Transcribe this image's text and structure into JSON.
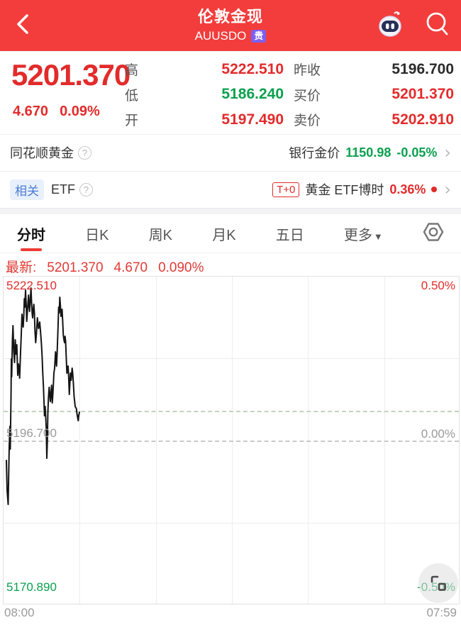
{
  "colors": {
    "header_bg": "#f23d3c",
    "accent_red": "#e22b2b",
    "up_red": "#e22b2b",
    "down_green": "#0ba04e",
    "tab_underline": "#ee3b33",
    "axis_gray": "#9a9a9a",
    "related_badge_bg": "#e8f0fc",
    "related_badge_text": "#4a7bd4",
    "vip_badge_bg": "#7e5ff0",
    "line_color": "#141414"
  },
  "header": {
    "title": "伦敦金现",
    "subtitle": "AUUSDO",
    "vip_badge": "贵",
    "icons": [
      "back-chevron",
      "robot-assistant",
      "search-magnifier"
    ]
  },
  "quote": {
    "price": "5201.370",
    "change": "4.670",
    "change_pct": "0.09%",
    "stats": [
      {
        "label": "高",
        "value": "5222.510",
        "color": "red"
      },
      {
        "label": "低",
        "value": "5186.240",
        "color": "green"
      },
      {
        "label": "开",
        "value": "5197.490",
        "color": "red"
      },
      {
        "label": "昨收",
        "value": "5196.700",
        "color": "dark"
      },
      {
        "label": "买价",
        "value": "5201.370",
        "color": "red"
      },
      {
        "label": "卖价",
        "value": "5202.910",
        "color": "red"
      }
    ]
  },
  "gold_row": {
    "title": "同花顺黄金",
    "help_icon": "?",
    "bank_label": "银行金价",
    "bank_price": "1150.98",
    "bank_change": "-0.05%",
    "chevron": "›"
  },
  "etf_row": {
    "tag": "相关",
    "title": "ETF",
    "help_icon": "?",
    "t0_badge": "T+0",
    "fund_name": "黄金 ETF博时",
    "fund_change": "0.36%",
    "chevron": "›"
  },
  "tabs": {
    "items": [
      "分时",
      "日K",
      "周K",
      "月K",
      "五日",
      "更多"
    ],
    "active": "分时",
    "more_caret": "▼",
    "settings_icon": "hex-gear"
  },
  "latest": {
    "label": "最新:",
    "price": "5201.370",
    "change": "4.670",
    "pct": "0.090%"
  },
  "chart_data": {
    "type": "line",
    "title": "分时 (intraday) price line",
    "x_axis": [
      "08:00",
      "07:59"
    ],
    "y_axis_left": [
      "5222.510",
      "5196.700",
      "5170.890"
    ],
    "y_axis_right": [
      "0.50%",
      "0.00%",
      "-0.50%"
    ],
    "prev_close": 5196.7,
    "latest_price": 5201.37,
    "high": 5222.51,
    "low": 5186.24,
    "ylim": [
      5170.89,
      5222.51
    ],
    "grid": "on",
    "plot_size": [
      644,
      463
    ],
    "zero_line_y": 231,
    "latest_line_y": 189,
    "points": [
      [
        4,
        259
      ],
      [
        5,
        301
      ],
      [
        6.5,
        321
      ],
      [
        7.5,
        266
      ],
      [
        8,
        239
      ],
      [
        9,
        211
      ],
      [
        9.5,
        243
      ],
      [
        10.5,
        171
      ],
      [
        11,
        116
      ],
      [
        11.5,
        141
      ],
      [
        12.5,
        89
      ],
      [
        13.3,
        69
      ],
      [
        14.5,
        106
      ],
      [
        15.5,
        121
      ],
      [
        16.5,
        89
      ],
      [
        17.5,
        109
      ],
      [
        18.7,
        96
      ],
      [
        20,
        139
      ],
      [
        21,
        123
      ],
      [
        22,
        131
      ],
      [
        22.7,
        143
      ],
      [
        24,
        106
      ],
      [
        25,
        81
      ],
      [
        26,
        53
      ],
      [
        27,
        66
      ],
      [
        27.7,
        71
      ],
      [
        28.5,
        56
      ],
      [
        29.3,
        31
      ],
      [
        30,
        43
      ],
      [
        31,
        19
      ],
      [
        32,
        41
      ],
      [
        32.7,
        63
      ],
      [
        33.5,
        51
      ],
      [
        34.5,
        36
      ],
      [
        35.3,
        26
      ],
      [
        36,
        41
      ],
      [
        36.7,
        49
      ],
      [
        37.5,
        36
      ],
      [
        38.7,
        16
      ],
      [
        39.5,
        36
      ],
      [
        40.3,
        51
      ],
      [
        41,
        58
      ],
      [
        41.8,
        47
      ],
      [
        42.7,
        39
      ],
      [
        43.5,
        51
      ],
      [
        44.3,
        76
      ],
      [
        45.3,
        93
      ],
      [
        46.3,
        81
      ],
      [
        47.7,
        58
      ],
      [
        48.5,
        66
      ],
      [
        49.3,
        73
      ],
      [
        50.2,
        69
      ],
      [
        51,
        64
      ],
      [
        52,
        76
      ],
      [
        53.3,
        93
      ],
      [
        54.3,
        111
      ],
      [
        55.3,
        136
      ],
      [
        56.3,
        156
      ],
      [
        57.7,
        196
      ],
      [
        58.7,
        183
      ],
      [
        59.5,
        199
      ],
      [
        60.2,
        213
      ],
      [
        61,
        256
      ],
      [
        61.8,
        231
      ],
      [
        62.5,
        191
      ],
      [
        63.3,
        171
      ],
      [
        64.3,
        156
      ],
      [
        65.2,
        166
      ],
      [
        66,
        176
      ],
      [
        66.8,
        166
      ],
      [
        67.7,
        153
      ],
      [
        68.7,
        178
      ],
      [
        69.5,
        166
      ],
      [
        70.3,
        151
      ],
      [
        71,
        136
      ],
      [
        72,
        129
      ],
      [
        73.3,
        106
      ],
      [
        74,
        116
      ],
      [
        74.7,
        126
      ],
      [
        75.5,
        109
      ],
      [
        76.5,
        81
      ],
      [
        77.7,
        43
      ],
      [
        78.5,
        51
      ],
      [
        79.3,
        29
      ],
      [
        80.2,
        41
      ],
      [
        81,
        56
      ],
      [
        81.8,
        49
      ],
      [
        82.5,
        46
      ],
      [
        83.3,
        61
      ],
      [
        84.3,
        83
      ],
      [
        85.2,
        89
      ],
      [
        86,
        93
      ],
      [
        86.7,
        84
      ],
      [
        87.5,
        91
      ],
      [
        88.3,
        111
      ],
      [
        89.3,
        136
      ],
      [
        90.2,
        129
      ],
      [
        91,
        126
      ],
      [
        91.8,
        141
      ],
      [
        92.7,
        166
      ],
      [
        93.5,
        151
      ],
      [
        94.3,
        136
      ],
      [
        95.3,
        146
      ],
      [
        96.7,
        129
      ],
      [
        97.5,
        136
      ],
      [
        98.5,
        151
      ],
      [
        99.5,
        169
      ],
      [
        101,
        183
      ],
      [
        102.7,
        186
      ],
      [
        103.5,
        193
      ],
      [
        104.5,
        199
      ],
      [
        105.3,
        203
      ],
      [
        106,
        196
      ],
      [
        107,
        191
      ]
    ]
  },
  "footer_times": {
    "start": "08:00",
    "end": "07:59"
  }
}
